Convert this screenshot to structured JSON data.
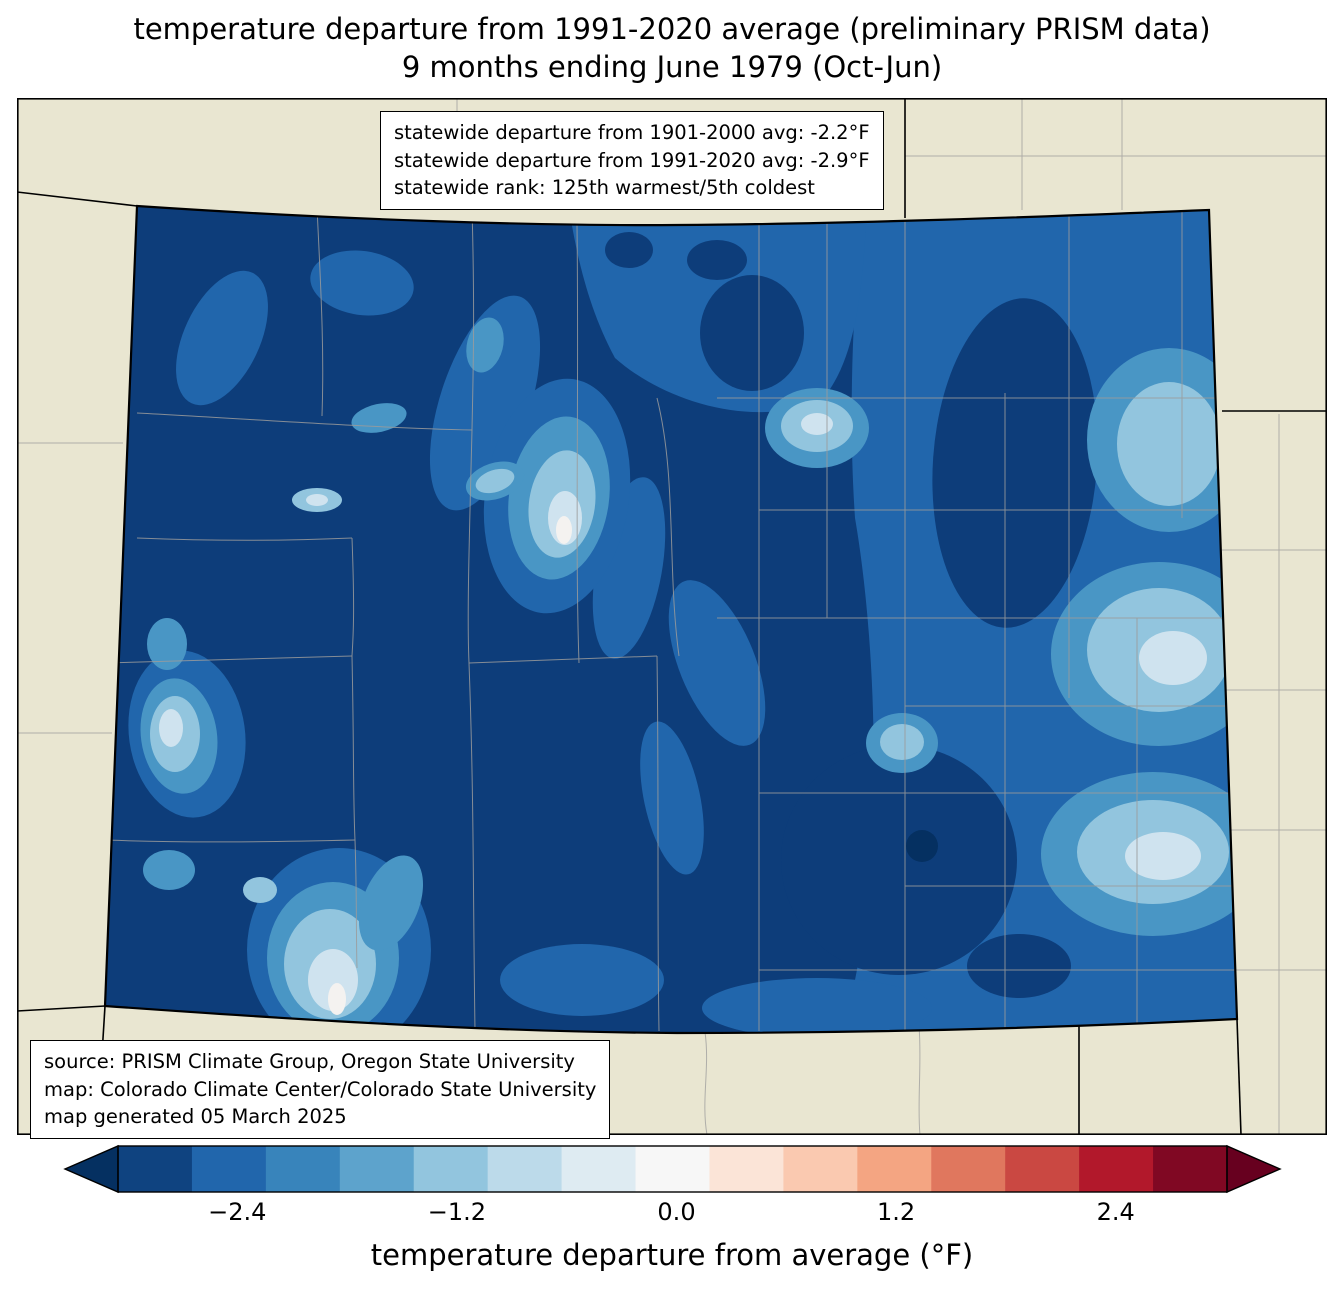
{
  "title": {
    "line1": "temperature departure from 1991-2020 average (preliminary PRISM data)",
    "line2": "9 months ending June 1979 (Oct-Jun)"
  },
  "map": {
    "stats_box": {
      "line1": "statewide departure from 1901-2000 avg: -2.2°F",
      "line2": "statewide departure from 1991-2020 avg: -2.9°F",
      "line3": "statewide rank: 125th warmest/5th coldest"
    },
    "source_box": {
      "line1": "source: PRISM Climate Group, Oregon State University",
      "line2": "map: Colorado Climate Center/Colorado State University",
      "line3": "map generated 05 March 2025"
    },
    "colors": {
      "land": "#e9e6d1",
      "s0": "#053061",
      "s1": "#0d3d7a",
      "s2": "#2166ac",
      "s3": "#4996c5",
      "s4": "#92c5de",
      "s5": "#cfe3ef",
      "s6": "#f4f2f0",
      "county": "#9b9b9b",
      "state": "#000000"
    }
  },
  "colorbar": {
    "label": "temperature departure from average (°F)",
    "range": [
      -3.0,
      3.0
    ],
    "ticks": [
      {
        "value": -2.4,
        "label": "−2.4"
      },
      {
        "value": -1.2,
        "label": "−1.2"
      },
      {
        "value": 0.0,
        "label": "0.0"
      },
      {
        "value": 1.2,
        "label": "1.2"
      },
      {
        "value": 2.4,
        "label": "2.4"
      }
    ],
    "segments": [
      "#0f4380",
      "#2166ac",
      "#3884bb",
      "#5da3cc",
      "#92c5de",
      "#bcdaea",
      "#deebf2",
      "#f7f7f7",
      "#fbe4d7",
      "#fac9b0",
      "#f4a582",
      "#e0775e",
      "#ca4842",
      "#b2182b",
      "#800823"
    ],
    "left_arrow": "#053061",
    "right_arrow": "#67001f"
  }
}
